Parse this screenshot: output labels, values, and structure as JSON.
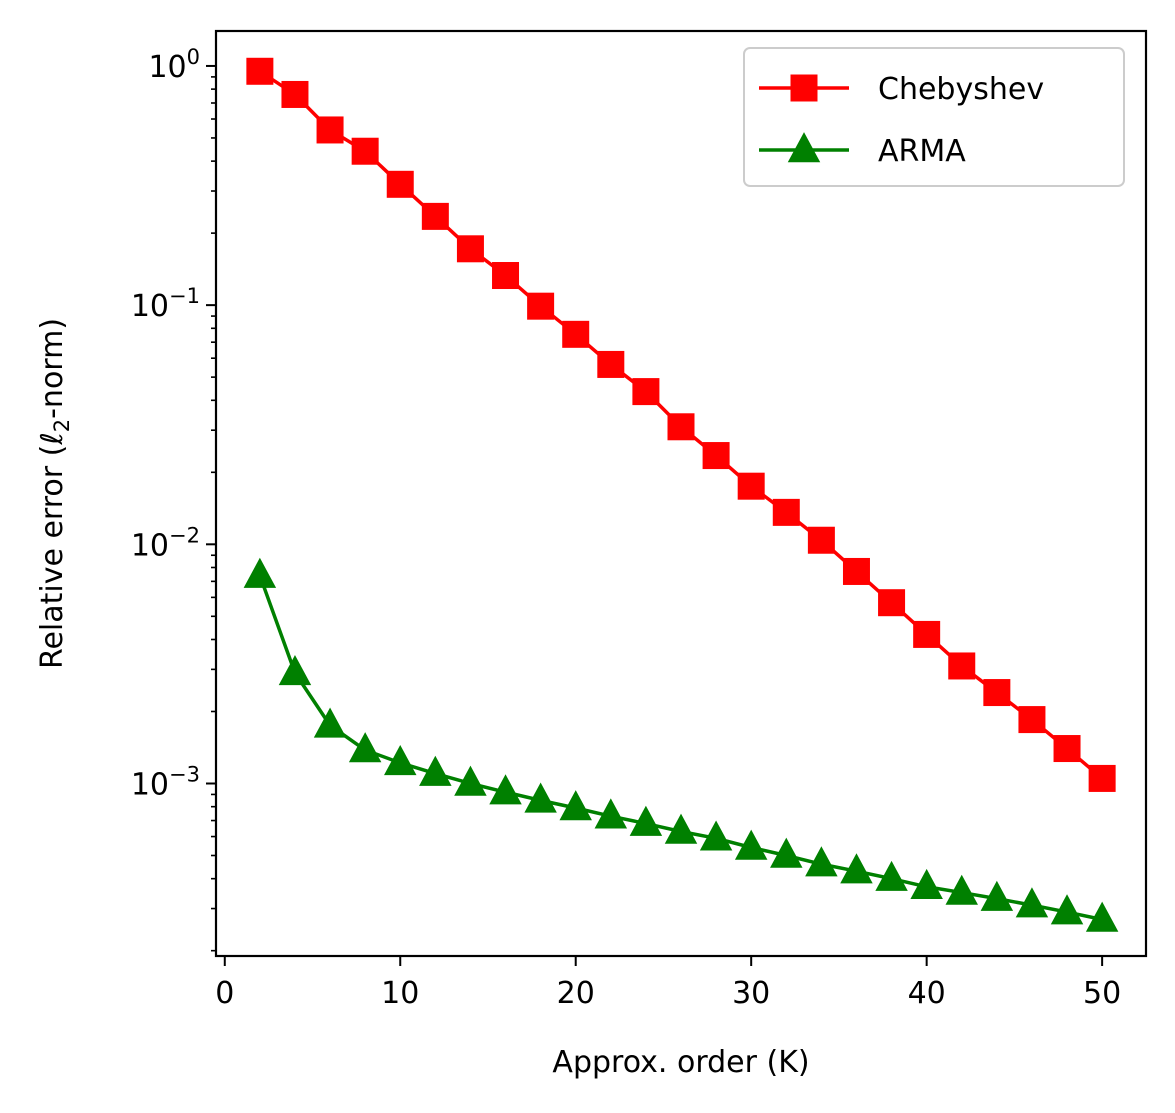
{
  "chart_data": {
    "type": "line",
    "xlabel": "Approx. order (K)",
    "ylabel": "Relative error (ℓ2-norm)",
    "ylabel_parts": {
      "before": "Relative error (",
      "italic": "ℓ",
      "sub": "2",
      "after": "-norm)"
    },
    "xscale": "linear",
    "yscale": "log",
    "xlim": [
      -0.5,
      52.5
    ],
    "ylim": [
      0.00019,
      1.4
    ],
    "xticks": [
      0,
      10,
      20,
      30,
      40,
      50
    ],
    "xtick_labels": [
      "0",
      "10",
      "20",
      "30",
      "40",
      "50"
    ],
    "yticks": [
      1,
      0.1,
      0.01,
      0.001
    ],
    "ytick_labels": [
      {
        "base": "10",
        "exp": "0"
      },
      {
        "base": "10",
        "exp": "−1"
      },
      {
        "base": "10",
        "exp": "−2"
      },
      {
        "base": "10",
        "exp": "−3"
      }
    ],
    "grid": false,
    "legend_position": "top-right",
    "x": [
      2,
      4,
      6,
      8,
      10,
      12,
      14,
      16,
      18,
      20,
      22,
      24,
      26,
      28,
      30,
      32,
      34,
      36,
      38,
      40,
      42,
      44,
      46,
      48,
      50
    ],
    "series": [
      {
        "name": "Chebyshev",
        "color": "#ff0000",
        "marker": "square",
        "values": [
          0.95,
          0.76,
          0.54,
          0.44,
          0.32,
          0.235,
          0.172,
          0.133,
          0.099,
          0.0755,
          0.0565,
          0.0435,
          0.031,
          0.0235,
          0.0175,
          0.0136,
          0.0104,
          0.0077,
          0.0057,
          0.0042,
          0.0031,
          0.0024,
          0.00185,
          0.0014,
          0.00105
        ]
      },
      {
        "name": "ARMA",
        "color": "#008000",
        "marker": "triangle",
        "values": [
          0.0074,
          0.0029,
          0.00175,
          0.00138,
          0.00122,
          0.0011,
          0.001,
          0.00092,
          0.00085,
          0.00079,
          0.00073,
          0.00068,
          0.00063,
          0.00059,
          0.00054,
          0.0005,
          0.00046,
          0.00043,
          0.0004,
          0.00037,
          0.00035,
          0.00033,
          0.00031,
          0.00029,
          0.00027
        ]
      }
    ]
  }
}
